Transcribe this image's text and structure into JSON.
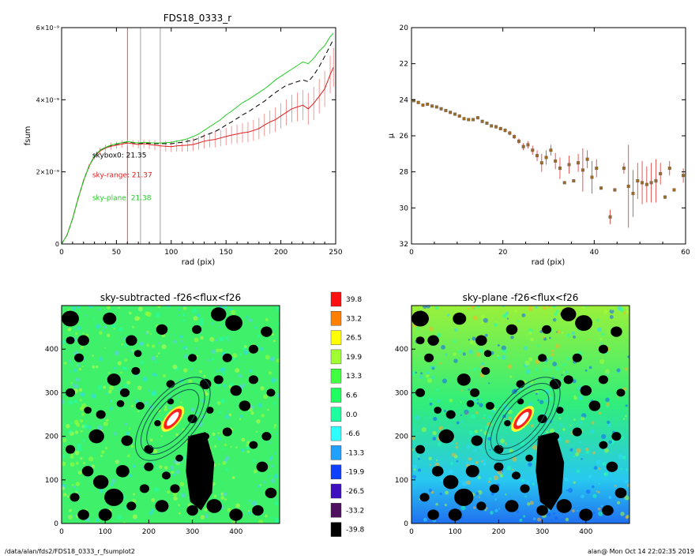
{
  "chart_data": [
    {
      "type": "line",
      "title": "FDS18_0333_r",
      "xlabel": "rad (pix)",
      "ylabel": "fsum",
      "xlim": [
        0,
        250
      ],
      "ylim": [
        0,
        6e-09
      ],
      "x_ticks": [
        "0",
        "50",
        "100",
        "150",
        "200",
        "250"
      ],
      "y_ticks": [
        {
          "value": 0,
          "label": "0"
        },
        {
          "value": 2e-09,
          "label": "2×10⁻⁹"
        },
        {
          "value": 4e-09,
          "label": "4×10⁻⁹"
        },
        {
          "value": 6e-09,
          "label": "6×10⁻⁹"
        }
      ],
      "vlines": [
        {
          "x": 60,
          "color": "#e02020"
        },
        {
          "x": 72,
          "color": "#888888"
        },
        {
          "x": 90,
          "color": "#888888"
        }
      ],
      "annotations": [
        {
          "text": "skybox0: 21.35",
          "color": "#000000",
          "x": 28,
          "y": 2.4e-09
        },
        {
          "text": "sky-range: 21.37",
          "color": "#e02020",
          "x": 28,
          "y": 1.85e-09
        },
        {
          "text": "sky-plane: 21.38",
          "color": "#22cc22",
          "x": 28,
          "y": 1.22e-09
        }
      ],
      "x": [
        0,
        5,
        10,
        15,
        20,
        25,
        30,
        35,
        40,
        45,
        50,
        55,
        60,
        65,
        70,
        75,
        80,
        85,
        90,
        95,
        100,
        105,
        110,
        115,
        120,
        125,
        130,
        135,
        140,
        145,
        150,
        155,
        160,
        165,
        170,
        175,
        180,
        185,
        190,
        195,
        200,
        205,
        210,
        215,
        220,
        225,
        230,
        235,
        240,
        245,
        248
      ],
      "series": [
        {
          "color": "#e02020",
          "style": "solid",
          "errorbars": true,
          "values": [
            0,
            2.5e-10,
            7e-10,
            1.25e-09,
            1.75e-09,
            2.15e-09,
            2.42e-09,
            2.58e-09,
            2.66e-09,
            2.71e-09,
            2.74e-09,
            2.77e-09,
            2.8e-09,
            2.78e-09,
            2.76e-09,
            2.78e-09,
            2.76e-09,
            2.74e-09,
            2.72e-09,
            2.71e-09,
            2.7e-09,
            2.72e-09,
            2.73e-09,
            2.74e-09,
            2.76e-09,
            2.8e-09,
            2.85e-09,
            2.88e-09,
            2.9e-09,
            2.94e-09,
            2.98e-09,
            3.02e-09,
            3.05e-09,
            3.08e-09,
            3.1e-09,
            3.15e-09,
            3.2e-09,
            3.3e-09,
            3.38e-09,
            3.45e-09,
            3.55e-09,
            3.65e-09,
            3.75e-09,
            3.8e-09,
            3.85e-09,
            3.75e-09,
            3.9e-09,
            4.1e-09,
            4.3e-09,
            4.7e-09,
            4.9e-09
          ],
          "errors": [
            0,
            2e-11,
            4e-11,
            5e-11,
            6e-11,
            7e-11,
            8e-11,
            9e-11,
            9e-11,
            1e-10,
            1e-10,
            1e-10,
            1e-10,
            1e-10,
            1.1e-10,
            1.2e-10,
            1.3e-10,
            1.4e-10,
            1.4e-10,
            1.5e-10,
            1.5e-10,
            1.6e-10,
            1.7e-10,
            1.8e-10,
            1.8e-10,
            1.9e-10,
            2e-10,
            2.1e-10,
            2.2e-10,
            2.3e-10,
            2.4e-10,
            2.5e-10,
            2.6e-10,
            2.7e-10,
            2.8e-10,
            2.9e-10,
            3e-10,
            3.1e-10,
            3.2e-10,
            3.4e-10,
            3.5e-10,
            3.6e-10,
            3.8e-10,
            4e-10,
            4.2e-10,
            4.4e-10,
            4.6e-10,
            4.8e-10,
            5e-10,
            5.2e-10,
            5.4e-10
          ]
        },
        {
          "color": "#000000",
          "style": "dashed",
          "values": [
            0,
            2.5e-10,
            7e-10,
            1.26e-09,
            1.76e-09,
            2.16e-09,
            2.44e-09,
            2.6e-09,
            2.68e-09,
            2.73e-09,
            2.77e-09,
            2.8e-09,
            2.83e-09,
            2.81e-09,
            2.79e-09,
            2.8e-09,
            2.79e-09,
            2.78e-09,
            2.78e-09,
            2.78e-09,
            2.78e-09,
            2.8e-09,
            2.82e-09,
            2.85e-09,
            2.88e-09,
            2.93e-09,
            3e-09,
            3.06e-09,
            3.12e-09,
            3.2e-09,
            3.3e-09,
            3.38e-09,
            3.48e-09,
            3.58e-09,
            3.66e-09,
            3.76e-09,
            3.86e-09,
            3.96e-09,
            4.08e-09,
            4.2e-09,
            4.3e-09,
            4.4e-09,
            4.45e-09,
            4.5e-09,
            4.55e-09,
            4.5e-09,
            4.68e-09,
            4.92e-09,
            5.2e-09,
            5.5e-09,
            5.68e-09
          ]
        },
        {
          "color": "#22cc22",
          "style": "solid",
          "values": [
            0,
            2.5e-10,
            7e-10,
            1.26e-09,
            1.76e-09,
            2.16e-09,
            2.44e-09,
            2.6e-09,
            2.68e-09,
            2.74e-09,
            2.78e-09,
            2.81e-09,
            2.84e-09,
            2.82e-09,
            2.8e-09,
            2.82e-09,
            2.81e-09,
            2.8e-09,
            2.8e-09,
            2.81e-09,
            2.82e-09,
            2.85e-09,
            2.88e-09,
            2.92e-09,
            2.98e-09,
            3.05e-09,
            3.15e-09,
            3.25e-09,
            3.35e-09,
            3.45e-09,
            3.58e-09,
            3.68e-09,
            3.8e-09,
            3.92e-09,
            4e-09,
            4.1e-09,
            4.2e-09,
            4.3e-09,
            4.42e-09,
            4.55e-09,
            4.65e-09,
            4.75e-09,
            4.85e-09,
            4.95e-09,
            5.05e-09,
            5e-09,
            5.15e-09,
            5.35e-09,
            5.5e-09,
            5.75e-09,
            5.85e-09
          ]
        }
      ]
    },
    {
      "type": "scatter",
      "title": "",
      "xlabel": "rad (pix)",
      "ylabel": "μ",
      "xlim": [
        0,
        60
      ],
      "ylim": [
        32,
        20
      ],
      "x_ticks": [
        "0",
        "20",
        "40",
        "60"
      ],
      "y_ticks": [
        "20",
        "22",
        "24",
        "26",
        "28",
        "30",
        "32"
      ],
      "points": [
        {
          "x": 0.5,
          "y": 24.05,
          "err": 0.05
        },
        {
          "x": 1.5,
          "y": 24.15,
          "err": 0.05
        },
        {
          "x": 2.5,
          "y": 24.3,
          "err": 0.05
        },
        {
          "x": 3.5,
          "y": 24.25,
          "err": 0.05
        },
        {
          "x": 4.5,
          "y": 24.35,
          "err": 0.05
        },
        {
          "x": 5.5,
          "y": 24.4,
          "err": 0.05
        },
        {
          "x": 6.5,
          "y": 24.5,
          "err": 0.05
        },
        {
          "x": 7.5,
          "y": 24.6,
          "err": 0.06
        },
        {
          "x": 8.5,
          "y": 24.7,
          "err": 0.06
        },
        {
          "x": 9.5,
          "y": 24.8,
          "err": 0.06
        },
        {
          "x": 10.5,
          "y": 24.9,
          "err": 0.06
        },
        {
          "x": 11.5,
          "y": 25.05,
          "err": 0.07
        },
        {
          "x": 12.5,
          "y": 25.1,
          "err": 0.07
        },
        {
          "x": 13.5,
          "y": 25.1,
          "err": 0.07
        },
        {
          "x": 14.5,
          "y": 25.0,
          "err": 0.07
        },
        {
          "x": 15.5,
          "y": 25.2,
          "err": 0.08
        },
        {
          "x": 16.5,
          "y": 25.3,
          "err": 0.08
        },
        {
          "x": 17.5,
          "y": 25.45,
          "err": 0.09
        },
        {
          "x": 18.5,
          "y": 25.5,
          "err": 0.1
        },
        {
          "x": 19.5,
          "y": 25.6,
          "err": 0.1
        },
        {
          "x": 20.5,
          "y": 25.7,
          "err": 0.11
        },
        {
          "x": 21.5,
          "y": 25.85,
          "err": 0.12
        },
        {
          "x": 22.5,
          "y": 26.05,
          "err": 0.13
        },
        {
          "x": 23.5,
          "y": 26.3,
          "err": 0.15
        },
        {
          "x": 24.5,
          "y": 26.6,
          "err": 0.2
        },
        {
          "x": 25.5,
          "y": 26.5,
          "err": 0.2
        },
        {
          "x": 26.5,
          "y": 26.8,
          "err": 0.25
        },
        {
          "x": 27.5,
          "y": 27.1,
          "err": 0.3
        },
        {
          "x": 28.5,
          "y": 27.5,
          "err": 0.5
        },
        {
          "x": 29.5,
          "y": 27.2,
          "err": 0.4
        },
        {
          "x": 30.5,
          "y": 26.8,
          "err": 0.3
        },
        {
          "x": 31.5,
          "y": 27.4,
          "err": 0.45
        },
        {
          "x": 32.5,
          "y": 27.8,
          "err": 0.6
        },
        {
          "x": 33.5,
          "y": 28.6,
          "err": 0.08
        },
        {
          "x": 34.5,
          "y": 27.6,
          "err": 0.5
        },
        {
          "x": 35.5,
          "y": 28.5,
          "err": 0.08
        },
        {
          "x": 36.5,
          "y": 27.5,
          "err": 0.5
        },
        {
          "x": 37.5,
          "y": 27.9,
          "err": 1.2
        },
        {
          "x": 38.5,
          "y": 27.3,
          "err": 0.5
        },
        {
          "x": 39.5,
          "y": 28.3,
          "err": 0.9
        },
        {
          "x": 40.5,
          "y": 27.8,
          "err": 0.5
        },
        {
          "x": 41.5,
          "y": 28.9,
          "err": 0.08
        },
        {
          "x": 43.5,
          "y": 30.5,
          "err": 0.4
        },
        {
          "x": 44.5,
          "y": 29.0,
          "err": 0.1
        },
        {
          "x": 46.5,
          "y": 27.8,
          "err": 0.3
        },
        {
          "x": 47.5,
          "y": 28.8,
          "err": 2.3
        },
        {
          "x": 48.5,
          "y": 29.2,
          "err": 1.3
        },
        {
          "x": 49.5,
          "y": 28.5,
          "err": 1.0
        },
        {
          "x": 50.5,
          "y": 28.6,
          "err": 1.2
        },
        {
          "x": 51.5,
          "y": 28.7,
          "err": 1.0
        },
        {
          "x": 52.5,
          "y": 28.6,
          "err": 1.1
        },
        {
          "x": 53.5,
          "y": 28.5,
          "err": 1.2
        },
        {
          "x": 54.5,
          "y": 28.1,
          "err": 0.6
        },
        {
          "x": 55.5,
          "y": 29.4,
          "err": 0.1
        },
        {
          "x": 56.5,
          "y": 27.8,
          "err": 0.4
        },
        {
          "x": 57.5,
          "y": 29.0,
          "err": 0.1
        },
        {
          "x": 59.5,
          "y": 28.2,
          "err": 0.4
        }
      ]
    },
    {
      "type": "heatmap",
      "title": "sky-subtracted -f26<flux<f26",
      "xlim": [
        0,
        500
      ],
      "ylim": [
        0,
        500
      ],
      "x_ticks": [
        "0",
        "100",
        "200",
        "300",
        "400"
      ],
      "y_ticks": [
        "0",
        "100",
        "200",
        "300",
        "400"
      ],
      "background_level": "green"
    },
    {
      "type": "heatmap",
      "title": "sky-plane -f26<flux<f26",
      "xlim": [
        0,
        500
      ],
      "ylim": [
        0,
        500
      ],
      "x_ticks": [
        "0",
        "100",
        "200",
        "300",
        "400"
      ],
      "y_ticks": [
        "0",
        "100",
        "200",
        "300",
        "400"
      ],
      "background_level": "gradient"
    }
  ],
  "colorbar": {
    "labels": [
      "39.8",
      "33.2",
      "26.5",
      "19.9",
      "13.3",
      "6.6",
      "0.0",
      "-6.6",
      "-13.3",
      "-19.9",
      "-26.5",
      "-33.2",
      "-39.8"
    ],
    "colors": [
      "#ff1010",
      "#ff8000",
      "#ffff00",
      "#a0ff30",
      "#40ff40",
      "#20ff60",
      "#20ffa0",
      "#30ffff",
      "#20a0ff",
      "#1040ff",
      "#4010c0",
      "#501060",
      "#000000"
    ]
  },
  "footer": {
    "path": "/data/alan/fds2/FDS18_0333_r_fsumplot2",
    "stamp": "alan@  Mon Oct 14 22:02:35 2019"
  }
}
